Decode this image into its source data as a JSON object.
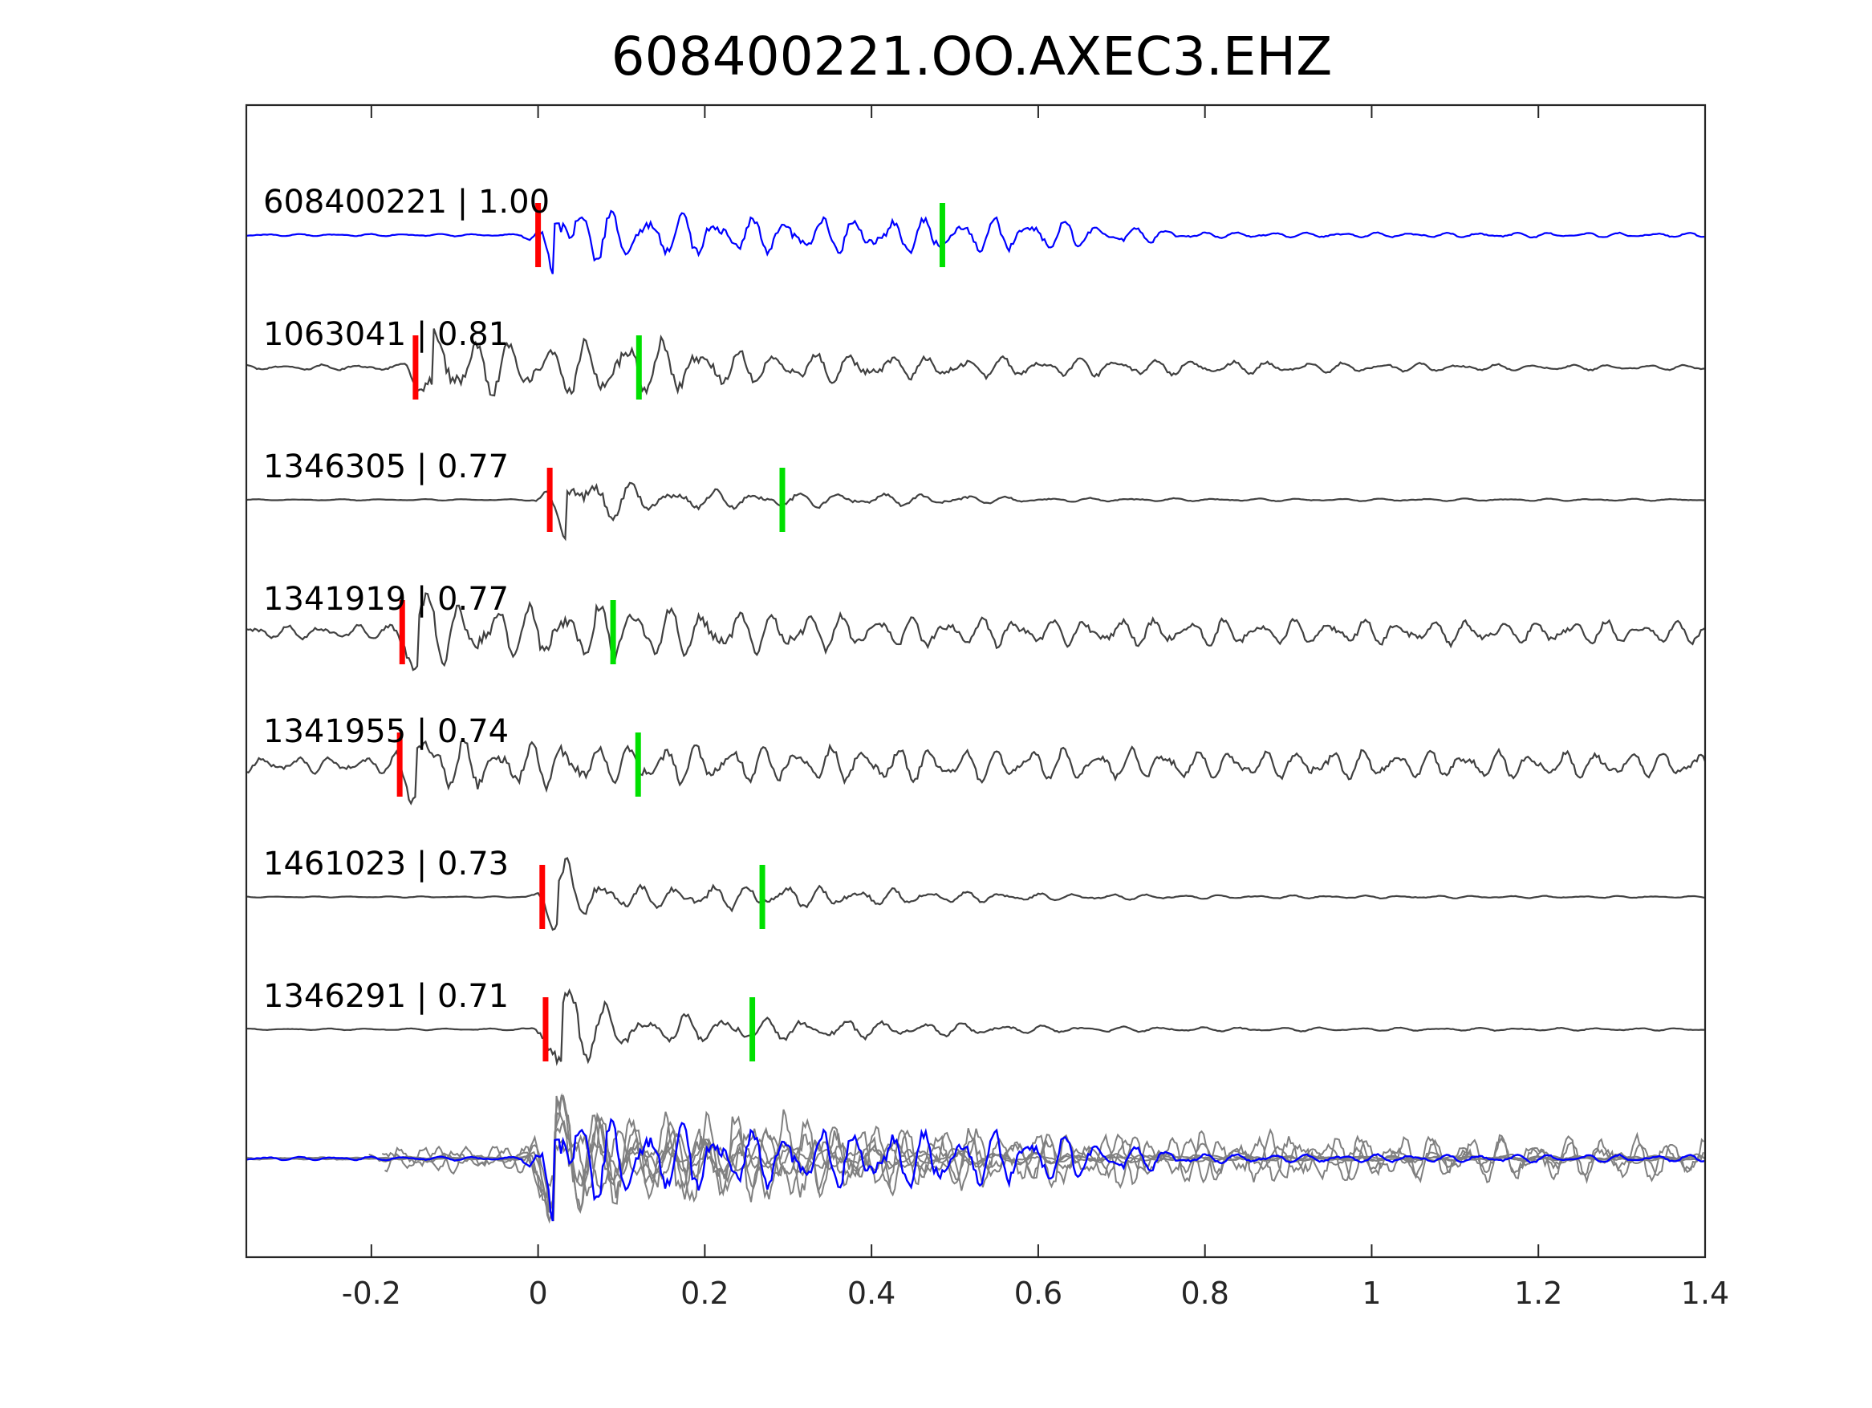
{
  "chart_data": {
    "type": "line",
    "title": "608400221.OO.AXEC3.EHZ",
    "xlabel": "",
    "ylabel": "",
    "xlim": [
      -0.35,
      1.4
    ],
    "x_ticks": [
      -0.2,
      0,
      0.2,
      0.4,
      0.6,
      0.8,
      1,
      1.2,
      1.4
    ],
    "x_tick_labels": [
      "-0.2",
      "0",
      "0.2",
      "0.4",
      "0.6",
      "0.8",
      "1",
      "1.2",
      "1.4"
    ],
    "grid": false,
    "y_ticks": [],
    "colors": {
      "reference": "#0000ff",
      "match": "#404040",
      "overlay": "#808080",
      "p_pick": "#ff0000",
      "s_pick": "#00e000",
      "axes": "#262626"
    },
    "traces": [
      {
        "id": "608400221",
        "cc": "1.00",
        "label": "608400221 | 1.00",
        "role": "reference",
        "p_pick": 0.0,
        "s_pick": 0.485,
        "amplitude": 1.0,
        "envelope": [
          0.04,
          0.04,
          1.0,
          0.75,
          0.6,
          0.6,
          0.55,
          0.1,
          0.08,
          0.08,
          0.06
        ],
        "dominant_freq": 24
      },
      {
        "id": "1063041",
        "cc": "0.81",
        "label": "1063041 | 0.81",
        "role": "match",
        "p_pick": -0.147,
        "s_pick": 0.121,
        "amplitude": 1.0,
        "envelope": [
          0.05,
          0.1,
          1.0,
          0.8,
          1.0,
          0.55,
          0.35,
          0.3,
          0.2,
          0.1,
          0.05
        ],
        "dominant_freq": 22
      },
      {
        "id": "1346305",
        "cc": "0.77",
        "label": "1346305 | 0.77",
        "role": "match",
        "p_pick": 0.014,
        "s_pick": 0.293,
        "amplitude": 1.0,
        "envelope": [
          0.02,
          0.03,
          1.0,
          0.45,
          0.3,
          0.25,
          0.08,
          0.05,
          0.05,
          0.04,
          0.03
        ],
        "dominant_freq": 20
      },
      {
        "id": "1341919",
        "cc": "0.77",
        "label": "1341919 | 0.77",
        "role": "match",
        "p_pick": -0.163,
        "s_pick": 0.09,
        "amplitude": 1.0,
        "envelope": [
          0.15,
          0.25,
          1.0,
          0.9,
          1.0,
          0.75,
          0.55,
          0.45,
          0.45,
          0.4,
          0.35
        ],
        "dominant_freq": 24
      },
      {
        "id": "1341955",
        "cc": "0.74",
        "label": "1341955 | 0.74",
        "role": "match",
        "p_pick": -0.166,
        "s_pick": 0.12,
        "amplitude": 1.0,
        "envelope": [
          0.25,
          0.35,
          1.0,
          1.0,
          0.85,
          0.75,
          0.7,
          0.65,
          0.6,
          0.55,
          0.5
        ],
        "dominant_freq": 25
      },
      {
        "id": "1461023",
        "cc": "0.73",
        "label": "1461023 | 0.73",
        "role": "match",
        "p_pick": 0.005,
        "s_pick": 0.269,
        "amplitude": 1.0,
        "envelope": [
          0.02,
          0.03,
          1.0,
          0.45,
          0.55,
          0.35,
          0.15,
          0.08,
          0.06,
          0.04,
          0.03
        ],
        "dominant_freq": 23
      },
      {
        "id": "1346291",
        "cc": "0.71",
        "label": "1346291 | 0.71",
        "role": "match",
        "p_pick": 0.009,
        "s_pick": 0.257,
        "amplitude": 1.0,
        "envelope": [
          0.02,
          0.03,
          1.0,
          0.45,
          0.35,
          0.25,
          0.1,
          0.06,
          0.05,
          0.04,
          0.03
        ],
        "dominant_freq": 21
      }
    ],
    "overlay": {
      "description_role": "stack",
      "reference_id": "608400221",
      "match_ids": [
        "1063041",
        "1346305",
        "1341919",
        "1341955",
        "1461023",
        "1346291"
      ]
    }
  }
}
